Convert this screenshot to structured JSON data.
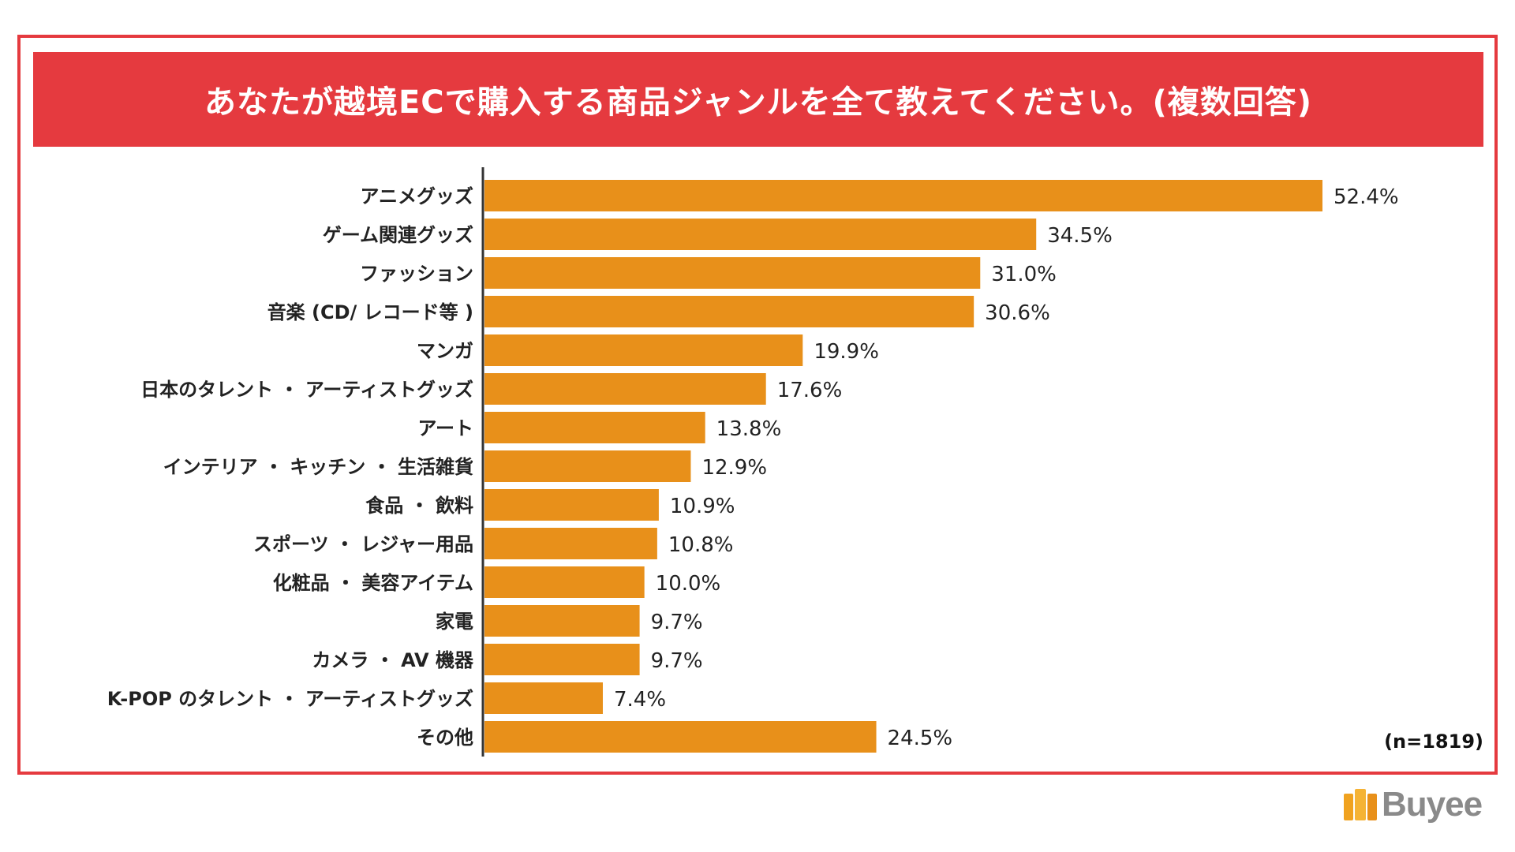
{
  "chart_data": {
    "type": "bar",
    "orientation": "horizontal",
    "title": "あなたが越境ECで購入する商品ジャンルを全て教えてください。(複数回答)",
    "categories": [
      "アニメグッズ",
      "ゲーム関連グッズ",
      "ファッション",
      "音楽 (CD/ レコード等 )",
      "マンガ",
      "日本のタレント ・ アーティストグッズ",
      "アート",
      "インテリア ・ キッチン ・ 生活雑貨",
      "食品 ・ 飲料",
      "スポーツ ・ レジャー用品",
      "化粧品 ・ 美容アイテム",
      "家電",
      "カメラ ・ AV 機器",
      "K-POP のタレント ・ アーティストグッズ",
      "その他"
    ],
    "values": [
      52.4,
      34.5,
      31.0,
      30.6,
      19.9,
      17.6,
      13.8,
      12.9,
      10.9,
      10.8,
      10.0,
      9.7,
      9.7,
      7.4,
      24.5
    ],
    "value_labels": [
      "52.4%",
      "34.5%",
      "31.0%",
      "30.6%",
      "19.9%",
      "17.6%",
      "13.8%",
      "12.9%",
      "10.9%",
      "10.8%",
      "10.0%",
      "9.7%",
      "9.7%",
      "7.4%",
      "24.5%"
    ],
    "xlim": [
      0,
      60
    ],
    "grid": false,
    "bar_color": "#e8901a",
    "sample_note": "(n=1819)"
  },
  "colors": {
    "accent": "#e53a3f",
    "bar": "#e8901a"
  },
  "brand": {
    "name": "Buyee",
    "icon": "shopping-bag-icon"
  }
}
